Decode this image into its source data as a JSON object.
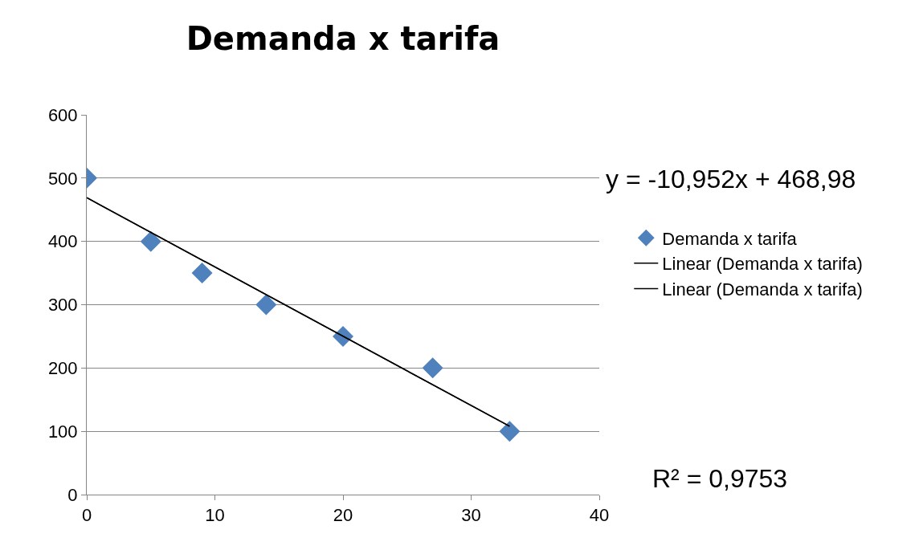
{
  "chart_data": {
    "type": "scatter",
    "title": "Demanda x tarifa",
    "xlim": [
      0,
      40
    ],
    "xticks": [
      0,
      10,
      20,
      30,
      40
    ],
    "ylim": [
      0,
      600
    ],
    "yticks": [
      0,
      100,
      200,
      300,
      400,
      500,
      600
    ],
    "grid": "y",
    "legend": "right",
    "series": [
      {
        "name": "Demanda x tarifa",
        "color": "#4f81bd",
        "marker": "diamond",
        "x": [
          0,
          5,
          9,
          14,
          20,
          27,
          33
        ],
        "values": [
          500,
          400,
          350,
          300,
          250,
          200,
          100
        ]
      },
      {
        "type": "line",
        "name": "Linear (Demanda x tarifa)",
        "color": "#000000",
        "line_style": "solid",
        "x": [
          0,
          33
        ],
        "values": [
          469,
          108
        ]
      },
      {
        "type": "line",
        "name": "Linear (Demanda x tarifa)",
        "color": "#000000",
        "line_style": "solid",
        "x": [
          0,
          33
        ],
        "values": [
          469,
          108
        ]
      }
    ],
    "annotations": [
      "y = -10,952x + 468,98",
      "R² = 0,9753"
    ]
  }
}
